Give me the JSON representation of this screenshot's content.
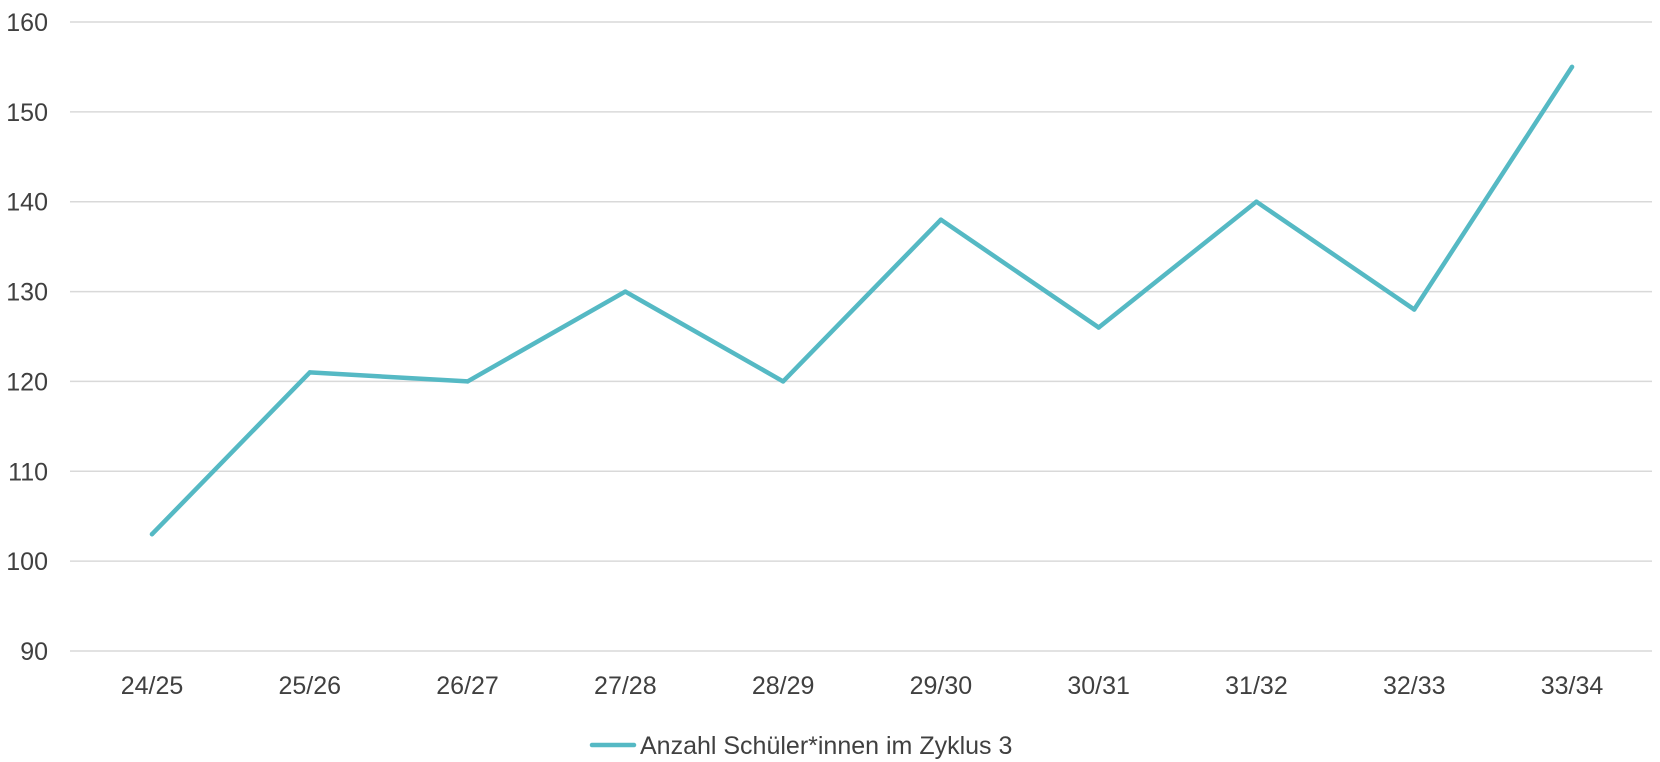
{
  "chart_data": {
    "type": "line",
    "categories": [
      "24/25",
      "25/26",
      "26/27",
      "27/28",
      "28/29",
      "29/30",
      "30/31",
      "31/32",
      "32/33",
      "33/34"
    ],
    "series": [
      {
        "name": "Anzahl Schüler*innen im Zyklus 3",
        "values": [
          103,
          121,
          120,
          130,
          120,
          138,
          126,
          140,
          128,
          155
        ],
        "color": "#55b9c4"
      }
    ],
    "yticks": [
      90,
      100,
      110,
      120,
      130,
      140,
      150,
      160
    ],
    "ylim": [
      90,
      160
    ],
    "grid": true,
    "legend_position": "bottom",
    "title": "",
    "xlabel": "",
    "ylabel": ""
  }
}
